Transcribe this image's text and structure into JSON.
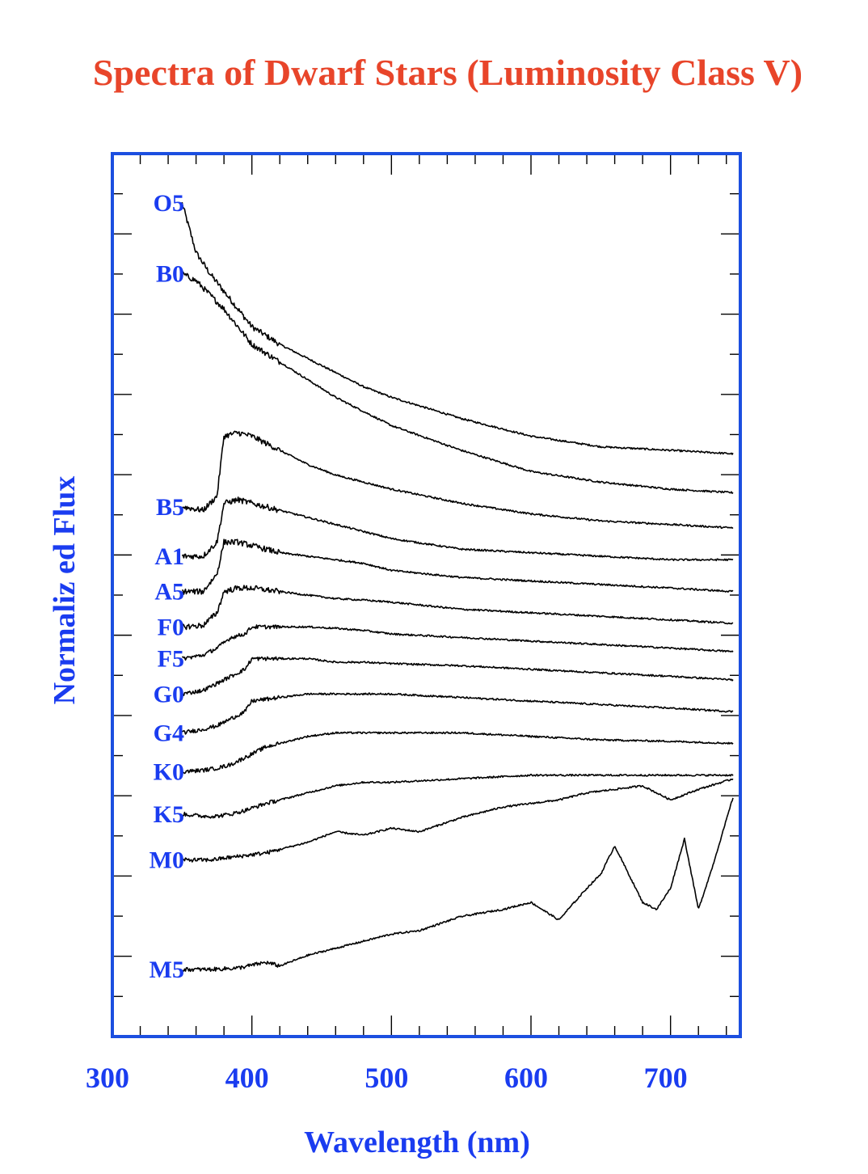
{
  "colors": {
    "title": "#e8452a",
    "axis_blue": "#1a3cf0",
    "frame": "#1c4fe0",
    "curve": "#000000"
  },
  "chart_data": {
    "type": "line",
    "title": "Spectra of Dwarf Stars (Luminosity Class V)",
    "xlabel": "Wavelength (nm)",
    "ylabel": "Normaliz ed Flux",
    "xlim": [
      300,
      750
    ],
    "xticks": [
      300,
      400,
      500,
      600,
      700
    ],
    "x_tick_labels": [
      "300",
      "400",
      "500",
      "600",
      "700"
    ],
    "y_ticks_labelled": false,
    "grid": false,
    "legend": "none",
    "series": [
      {
        "name": "O5",
        "x": [
          350,
          360,
          370,
          380,
          390,
          400,
          420,
          440,
          460,
          480,
          500,
          550,
          600,
          650,
          700,
          745
        ],
        "y": [
          13.3,
          12.6,
          12.3,
          12.05,
          11.8,
          11.55,
          11.3,
          11.1,
          10.9,
          10.7,
          10.55,
          10.25,
          10.0,
          9.85,
          9.8,
          9.75
        ]
      },
      {
        "name": "B0",
        "x": [
          350,
          360,
          370,
          380,
          390,
          400,
          420,
          440,
          460,
          480,
          500,
          550,
          600,
          650,
          700,
          745
        ],
        "y": [
          12.3,
          12.2,
          12.0,
          11.8,
          11.55,
          11.3,
          11.05,
          10.8,
          10.55,
          10.35,
          10.15,
          9.8,
          9.5,
          9.35,
          9.25,
          9.2
        ]
      },
      {
        "name": "B5",
        "x": [
          350,
          365,
          375,
          380,
          390,
          400,
          420,
          440,
          460,
          480,
          500,
          550,
          600,
          650,
          700,
          745
        ],
        "y": [
          9.0,
          8.95,
          9.15,
          10.0,
          10.05,
          10.0,
          9.8,
          9.6,
          9.45,
          9.35,
          9.25,
          9.05,
          8.9,
          8.8,
          8.75,
          8.7
        ]
      },
      {
        "name": "A1",
        "x": [
          350,
          365,
          375,
          380,
          390,
          400,
          420,
          440,
          460,
          480,
          500,
          550,
          600,
          650,
          700,
          745
        ],
        "y": [
          8.3,
          8.3,
          8.5,
          9.05,
          9.1,
          9.05,
          8.95,
          8.85,
          8.75,
          8.65,
          8.55,
          8.4,
          8.35,
          8.3,
          8.25,
          8.25
        ]
      },
      {
        "name": "A5",
        "x": [
          350,
          365,
          375,
          380,
          390,
          400,
          420,
          440,
          460,
          480,
          500,
          550,
          600,
          650,
          700,
          745
        ],
        "y": [
          7.8,
          7.8,
          8.05,
          8.5,
          8.5,
          8.45,
          8.35,
          8.3,
          8.25,
          8.2,
          8.1,
          8.0,
          7.95,
          7.9,
          7.85,
          7.8
        ]
      },
      {
        "name": "F0",
        "x": [
          350,
          365,
          375,
          380,
          390,
          400,
          420,
          440,
          460,
          480,
          500,
          550,
          600,
          650,
          700,
          745
        ],
        "y": [
          7.3,
          7.32,
          7.5,
          7.8,
          7.85,
          7.85,
          7.8,
          7.75,
          7.7,
          7.68,
          7.65,
          7.55,
          7.5,
          7.45,
          7.4,
          7.35
        ]
      },
      {
        "name": "F5",
        "x": [
          350,
          365,
          375,
          385,
          395,
          400,
          420,
          440,
          460,
          480,
          500,
          550,
          600,
          650,
          700,
          745
        ],
        "y": [
          6.85,
          6.9,
          7.0,
          7.15,
          7.2,
          7.3,
          7.3,
          7.3,
          7.28,
          7.25,
          7.2,
          7.15,
          7.1,
          7.05,
          7.0,
          6.95
        ]
      },
      {
        "name": "G0",
        "x": [
          350,
          365,
          375,
          385,
          395,
          400,
          420,
          440,
          460,
          480,
          500,
          550,
          600,
          650,
          700,
          745
        ],
        "y": [
          6.35,
          6.4,
          6.5,
          6.6,
          6.7,
          6.85,
          6.85,
          6.85,
          6.8,
          6.8,
          6.78,
          6.75,
          6.7,
          6.65,
          6.6,
          6.55
        ]
      },
      {
        "name": "G4",
        "x": [
          350,
          365,
          375,
          385,
          395,
          400,
          420,
          440,
          460,
          480,
          500,
          550,
          600,
          650,
          700,
          745
        ],
        "y": [
          5.8,
          5.85,
          5.9,
          6.0,
          6.1,
          6.25,
          6.3,
          6.35,
          6.35,
          6.35,
          6.35,
          6.3,
          6.25,
          6.2,
          6.15,
          6.1
        ]
      },
      {
        "name": "K0",
        "x": [
          350,
          365,
          375,
          385,
          395,
          410,
          420,
          440,
          460,
          480,
          500,
          550,
          600,
          650,
          700,
          745
        ],
        "y": [
          5.25,
          5.27,
          5.3,
          5.35,
          5.45,
          5.6,
          5.65,
          5.75,
          5.8,
          5.8,
          5.8,
          5.8,
          5.75,
          5.7,
          5.68,
          5.65
        ]
      },
      {
        "name": "K5",
        "x": [
          350,
          365,
          375,
          385,
          395,
          410,
          420,
          440,
          460,
          480,
          500,
          550,
          600,
          650,
          700,
          745
        ],
        "y": [
          4.65,
          4.62,
          4.62,
          4.65,
          4.7,
          4.8,
          4.85,
          4.95,
          5.05,
          5.1,
          5.1,
          5.15,
          5.2,
          5.2,
          5.2,
          5.2
        ]
      },
      {
        "name": "M0",
        "x": [
          350,
          370,
          390,
          410,
          420,
          440,
          460,
          480,
          500,
          520,
          550,
          580,
          600,
          620,
          640,
          660,
          680,
          700,
          720,
          745
        ],
        "y": [
          4.0,
          4.0,
          4.05,
          4.1,
          4.15,
          4.25,
          4.4,
          4.35,
          4.45,
          4.4,
          4.6,
          4.75,
          4.8,
          4.85,
          4.95,
          5.0,
          5.05,
          4.85,
          5.0,
          5.15
        ]
      },
      {
        "name": "M5",
        "x": [
          350,
          370,
          390,
          410,
          420,
          440,
          460,
          480,
          500,
          520,
          550,
          580,
          600,
          620,
          640,
          650,
          660,
          680,
          690,
          700,
          710,
          720,
          730,
          745
        ],
        "y": [
          2.45,
          2.45,
          2.47,
          2.55,
          2.5,
          2.65,
          2.75,
          2.85,
          2.95,
          3.0,
          3.2,
          3.3,
          3.4,
          3.15,
          3.6,
          3.8,
          4.2,
          3.4,
          3.3,
          3.6,
          4.3,
          3.3,
          3.9,
          4.9
        ]
      }
    ]
  }
}
